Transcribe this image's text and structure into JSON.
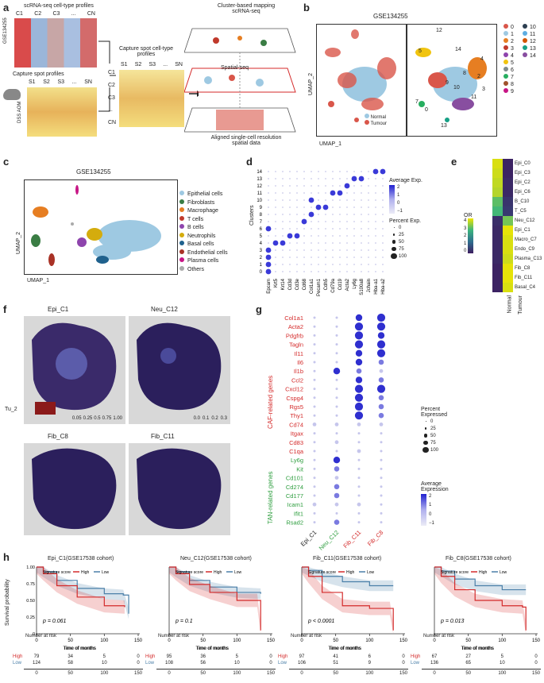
{
  "panels": {
    "a": "a",
    "b": "b",
    "c": "c",
    "d": "d",
    "e": "e",
    "f": "f",
    "g": "g",
    "h": "h"
  },
  "panel_a": {
    "sc_title": "scRNA-seq cell-type profiles",
    "sc_cols": [
      "C1",
      "C2",
      "C3",
      "...",
      "CN"
    ],
    "gse_side": "GSE134255",
    "capture_title": "Capture spot profiles",
    "capture_cols": [
      "S1",
      "S2",
      "S3",
      "...",
      "SN"
    ],
    "dss_side": "DSS AOM",
    "mid_title_1": "Capture spot cell-type",
    "mid_title_2": "profiles",
    "mid_cols": [
      "S1",
      "S2",
      "S3",
      "...",
      "SN"
    ],
    "mid_rows": [
      "C1",
      "C2",
      "C3",
      "...",
      "CN"
    ],
    "right_title_1": "Cluster-based mapping",
    "right_title_2": "scRNA-seq",
    "spatial_label": "Spatial-seq",
    "aligned_1": "Aligned single-cell resolution",
    "aligned_2": "spatial data"
  },
  "panel_b": {
    "title": "GSE134255",
    "xlabel": "UMAP_1",
    "ylabel": "UMAP_2",
    "legend_normal": "Normal",
    "legend_tumour": "Tumour",
    "colors": {
      "normal": "#9ec9e2",
      "tumour": "#d9564a"
    },
    "cluster_labels": [
      "0",
      "1",
      "2",
      "3",
      "4",
      "5",
      "6",
      "7",
      "8",
      "9",
      "10",
      "11",
      "12",
      "13",
      "14"
    ],
    "cluster_colors": [
      "#d9564a",
      "#9ec9e2",
      "#e67e22",
      "#c0392b",
      "#8e44ad",
      "#f1c40f",
      "#7f8c8d",
      "#27ae60",
      "#a0522d",
      "#c71585",
      "#2c3e50",
      "#5dade2",
      "#d35400",
      "#16a085",
      "#884ea0"
    ],
    "onplot_labels": [
      "12",
      "14",
      "5",
      "4",
      "7",
      "0",
      "8",
      "2",
      "10",
      "11",
      "13",
      "9",
      "3"
    ]
  },
  "panel_c": {
    "title": "GSE134255",
    "xlabel": "UMAP_1",
    "ylabel": "UMAP_2",
    "legend": [
      "Epithelial cells",
      "Fibroblasts",
      "Macrophage",
      "T cells",
      "B cells",
      "Neutrophils",
      "Basal cells",
      "Endothelial cells",
      "Plasma cells",
      "Others"
    ],
    "legend_colors": [
      "#9ec9e2",
      "#3a7d44",
      "#e67e22",
      "#c0392b",
      "#8e44ad",
      "#d4ac0d",
      "#1f618d",
      "#a93226",
      "#c71585",
      "#aaaaaa"
    ]
  },
  "panel_d": {
    "ylabel": "Clusters",
    "genes": [
      "Epcam",
      "Krt5",
      "Krt14",
      "Cd3d",
      "Cd3e",
      "Cd68",
      "Col1a1",
      "Pecam1",
      "Cdh5",
      "Cd79a",
      "Cd19",
      "Acta2",
      "Ly6g",
      "S100a8",
      "Jchain",
      "Hba-a1",
      "Hba-a2"
    ],
    "clusters": [
      "0",
      "1",
      "2",
      "3",
      "4",
      "5",
      "6",
      "7",
      "8",
      "9",
      "10",
      "11",
      "12",
      "13",
      "14"
    ],
    "legend_avg_title": "Average Exp.",
    "avg_ticks": [
      "2",
      "1",
      "0",
      "−1"
    ],
    "legend_pct_title": "Percent Exp.",
    "pct_ticks": [
      "0",
      "25",
      "50",
      "75",
      "100"
    ]
  },
  "panel_e": {
    "rows": [
      "Epi_C0",
      "Epi_C3",
      "Epi_C2",
      "Epi_C6",
      "B_C10",
      "T_C5",
      "Neu_C12",
      "Epi_C1",
      "Macro_C7",
      "Endo_C9",
      "Plasma_C13",
      "Fib_C8",
      "Fib_C11",
      "Basal_C4"
    ],
    "cols": [
      "Normal",
      "Tumour"
    ],
    "or_title": "OR",
    "or_ticks": [
      "4",
      "3",
      "2",
      "1",
      "0"
    ],
    "normal_values": [
      4.2,
      4.1,
      4.0,
      3.9,
      3.2,
      3.0,
      0.3,
      0.2,
      0.2,
      0.2,
      0.2,
      0.1,
      0.1,
      0.1
    ],
    "tumour_values": [
      0.1,
      0.1,
      0.2,
      0.2,
      0.4,
      0.5,
      3.4,
      4.3,
      4.2,
      4.2,
      4.1,
      4.3,
      4.3,
      4.2
    ]
  },
  "panel_f": {
    "titles": [
      "Epi_C1",
      "Neu_C12",
      "Fib_C8",
      "Fib_C11"
    ],
    "side_label": "Tu_2",
    "scale_ticks_a": [
      "0.05",
      "0.25",
      "0.5",
      "0.75",
      "1.00"
    ],
    "scale_ticks_b": [
      "0.0",
      "0.1",
      "0.2",
      "0.3"
    ]
  },
  "panel_g": {
    "caf_genes": [
      "Col1a1",
      "Acta2",
      "Pdgfrb",
      "Tagln",
      "Il11",
      "Il6",
      "Il1b",
      "Ccl2",
      "Cxcl12",
      "Cspg4",
      "Rgs5",
      "Thy1",
      "Cd74",
      "Itgax",
      "Cd83",
      "C1qa"
    ],
    "tan_genes": [
      "Ly6g",
      "Kit",
      "Cd101",
      "Cd274",
      "Cd177",
      "Icam1",
      "Ifit1",
      "Rsad2"
    ],
    "caf_label": "CAF-related genes",
    "tan_label": "TAN-related genes",
    "cols": [
      "Epi_C1",
      "Neu_C12",
      "Fib_C11",
      "Fib_C8"
    ],
    "col_colors": [
      "#222222",
      "#2e9e3f",
      "#d42a2a",
      "#d42a2a"
    ],
    "legend_pct_title_1": "Percent",
    "legend_pct_title_2": "Expressed",
    "pct_ticks": [
      "0",
      "25",
      "50",
      "75",
      "100"
    ],
    "legend_avg_title_1": "Average",
    "legend_avg_title_2": "Expression",
    "avg_ticks": [
      "2",
      "1",
      "0",
      "−1"
    ]
  },
  "panel_h": {
    "ylabel": "Survival probability",
    "xlabel": "Time of months",
    "risk_label": "Number at risk",
    "sig_label": "Signature score",
    "high": "High",
    "low": "Low",
    "x_ticks": [
      "0",
      "50",
      "100",
      "150"
    ],
    "y_ticks": [
      "1.00",
      "0.75",
      "0.50",
      "0.25",
      "0"
    ],
    "plots": [
      {
        "title": "Epi_C1(GSE17538 cohort)",
        "p": "p = 0.061",
        "risk_high": [
          "79",
          "34",
          "5",
          "0"
        ],
        "risk_low": [
          "124",
          "58",
          "10",
          "0"
        ]
      },
      {
        "title": "Neu_C12(GSE17538 cohort)",
        "p": "p = 0.1",
        "risk_high": [
          "95",
          "36",
          "5",
          "0"
        ],
        "risk_low": [
          "108",
          "56",
          "10",
          "0"
        ]
      },
      {
        "title": "Fib_C11(GSE17538 cohort)",
        "p": "p < 0.0001",
        "risk_high": [
          "97",
          "41",
          "6",
          "0"
        ],
        "risk_low": [
          "106",
          "51",
          "9",
          "0"
        ]
      },
      {
        "title": "Fib_C8(GSE17538 cohort)",
        "p": "p = 0.013",
        "risk_high": [
          "67",
          "27",
          "5",
          "0"
        ],
        "risk_low": [
          "136",
          "65",
          "10",
          "0"
        ]
      }
    ],
    "colors": {
      "high": "#d42a2a",
      "low": "#4a7fa8"
    }
  }
}
